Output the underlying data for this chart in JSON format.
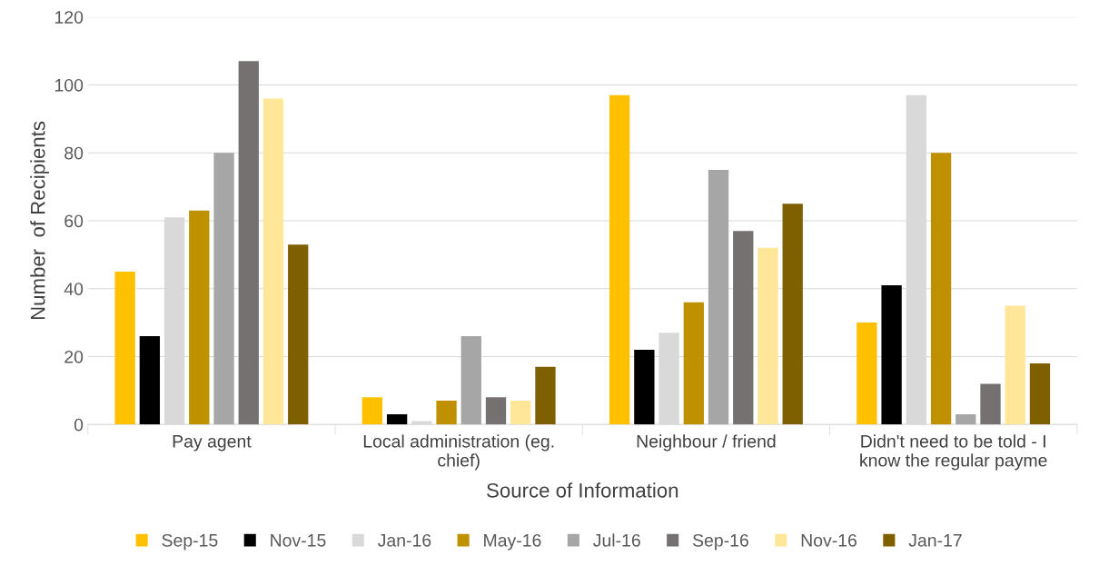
{
  "chart_data": {
    "type": "bar",
    "xlabel": "Source of Information",
    "ylabel": "Number  of Recipients",
    "categories": [
      "Pay agent",
      "Local administration (eg.\nchief)",
      "Neighbour / friend",
      "Didn't need to be told - I\nknow the regular payme"
    ],
    "series": [
      {
        "name": "Sep-15",
        "color": "#ffc000",
        "values": [
          45,
          8,
          97,
          30
        ]
      },
      {
        "name": "Nov-15",
        "color": "#000000",
        "values": [
          26,
          3,
          22,
          41
        ]
      },
      {
        "name": "Jan-16",
        "color": "#d9d9d9",
        "values": [
          61,
          1,
          27,
          97
        ]
      },
      {
        "name": "May-16",
        "color": "#bf9000",
        "values": [
          63,
          7,
          36,
          80
        ]
      },
      {
        "name": "Jul-16",
        "color": "#a6a6a6",
        "values": [
          80,
          26,
          75,
          3
        ]
      },
      {
        "name": "Sep-16",
        "color": "#767171",
        "values": [
          107,
          8,
          57,
          12
        ]
      },
      {
        "name": "Nov-16",
        "color": "#ffe699",
        "values": [
          96,
          7,
          52,
          35
        ]
      },
      {
        "name": "Jan-17",
        "color": "#7f6000",
        "values": [
          53,
          17,
          65,
          18
        ]
      }
    ],
    "ylim": [
      0,
      120
    ],
    "yticks": [
      0,
      20,
      40,
      60,
      80,
      100,
      120
    ],
    "grid": "y",
    "legend": "bottom"
  }
}
